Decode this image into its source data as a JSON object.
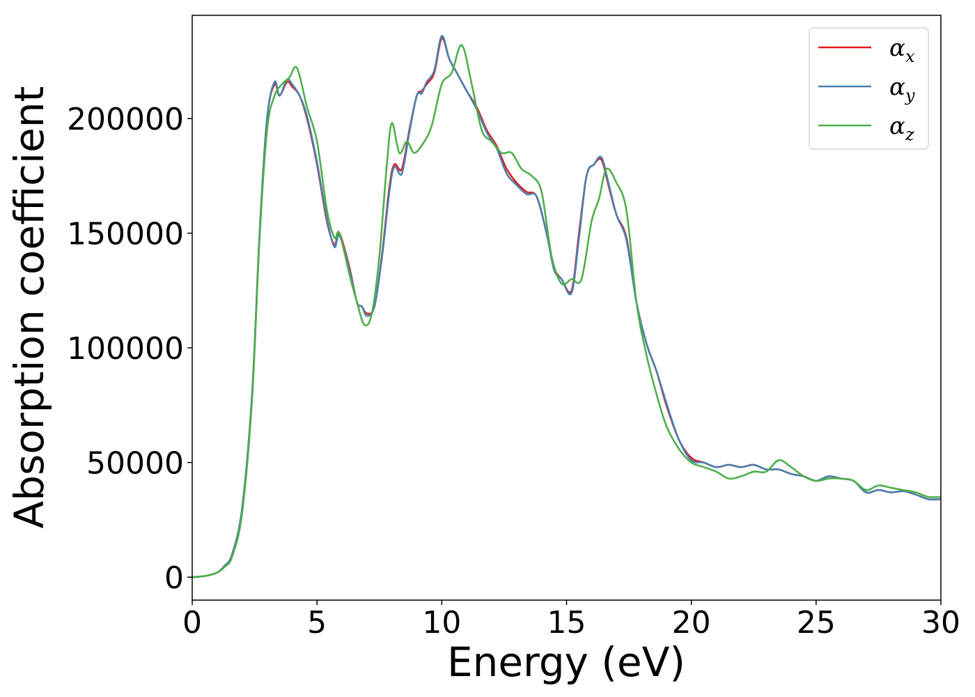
{
  "chart_data": {
    "type": "line",
    "xlabel": "Energy (eV)",
    "ylabel": "Absorption coefficient",
    "xlim": [
      0,
      30
    ],
    "ylim": [
      -10000,
      245000
    ],
    "xticks": [
      0,
      5,
      10,
      15,
      20,
      25,
      30
    ],
    "yticks": [
      0,
      50000,
      100000,
      150000,
      200000
    ],
    "grid": false,
    "legend_position": "top-right",
    "series": [
      {
        "name": "α_x",
        "label_base": "α",
        "label_sub": "x",
        "color": "#e41a1c",
        "x": [
          0,
          0.5,
          1.0,
          1.3,
          1.6,
          2.0,
          2.4,
          2.7,
          3.0,
          3.3,
          3.5,
          3.8,
          4.0,
          4.3,
          4.6,
          5.0,
          5.4,
          5.7,
          5.9,
          6.3,
          6.6,
          6.8,
          7.0,
          7.3,
          7.6,
          7.9,
          8.1,
          8.4,
          8.7,
          9.0,
          9.2,
          9.4,
          9.7,
          10.0,
          10.3,
          10.6,
          11.0,
          11.4,
          11.8,
          12.2,
          12.6,
          13.0,
          13.4,
          13.8,
          14.2,
          14.5,
          14.8,
          15.2,
          15.5,
          15.8,
          16.1,
          16.4,
          16.7,
          17.0,
          17.4,
          17.8,
          18.2,
          18.6,
          19.0,
          19.5,
          20.0,
          20.5,
          21.0,
          21.5,
          22.0,
          22.5,
          23.0,
          23.5,
          24.0,
          24.5,
          25.0,
          25.5,
          26.0,
          26.5,
          27.0,
          27.5,
          28.0,
          28.5,
          29.0,
          29.5,
          30.0
        ],
        "y": [
          0,
          500,
          2000,
          5000,
          10000,
          30000,
          80000,
          150000,
          200000,
          215000,
          210000,
          216000,
          214000,
          210000,
          200000,
          180000,
          155000,
          145000,
          150000,
          135000,
          120000,
          118000,
          115000,
          118000,
          140000,
          170000,
          180000,
          178000,
          195000,
          210000,
          212000,
          215000,
          220000,
          235000,
          226000,
          220000,
          212000,
          205000,
          195000,
          188000,
          178000,
          172000,
          168000,
          166000,
          150000,
          135000,
          130000,
          125000,
          150000,
          175000,
          180000,
          182000,
          170000,
          158000,
          148000,
          120000,
          102000,
          90000,
          75000,
          60000,
          52000,
          50000,
          48000,
          49000,
          48000,
          49000,
          47000,
          47000,
          45000,
          44000,
          42000,
          44000,
          43000,
          42000,
          37000,
          38000,
          37000,
          37500,
          36000,
          34000,
          34000
        ]
      },
      {
        "name": "α_y",
        "label_base": "α",
        "label_sub": "y",
        "color": "#4a7fb0",
        "x": [
          0,
          0.5,
          1.0,
          1.3,
          1.6,
          2.0,
          2.4,
          2.7,
          3.0,
          3.3,
          3.5,
          3.8,
          4.0,
          4.3,
          4.6,
          5.0,
          5.4,
          5.7,
          5.9,
          6.3,
          6.6,
          6.8,
          7.0,
          7.3,
          7.6,
          7.9,
          8.1,
          8.4,
          8.7,
          9.0,
          9.2,
          9.4,
          9.7,
          10.0,
          10.3,
          10.6,
          11.0,
          11.4,
          11.8,
          12.2,
          12.6,
          13.0,
          13.4,
          13.8,
          14.2,
          14.5,
          14.8,
          15.2,
          15.5,
          15.8,
          16.1,
          16.4,
          16.7,
          17.0,
          17.4,
          17.8,
          18.2,
          18.6,
          19.0,
          19.5,
          20.0,
          20.5,
          21.0,
          21.5,
          22.0,
          22.5,
          23.0,
          23.5,
          24.0,
          24.5,
          25.0,
          25.5,
          26.0,
          26.5,
          27.0,
          27.5,
          28.0,
          28.5,
          29.0,
          29.5,
          30.0
        ],
        "y": [
          0,
          500,
          2000,
          5000,
          10000,
          30000,
          80000,
          150000,
          200000,
          216000,
          210000,
          217000,
          215000,
          210000,
          201000,
          181000,
          156000,
          144000,
          149000,
          134000,
          120000,
          118000,
          114000,
          118000,
          139000,
          168000,
          179000,
          176000,
          194000,
          210000,
          211000,
          216000,
          221000,
          236000,
          226000,
          220000,
          212000,
          204000,
          194000,
          187000,
          176000,
          171000,
          167000,
          166000,
          150000,
          134000,
          130000,
          124000,
          148000,
          175000,
          180000,
          183000,
          171000,
          158000,
          147000,
          120000,
          102000,
          90000,
          76000,
          60000,
          51000,
          50000,
          48000,
          49000,
          48000,
          49000,
          47000,
          47000,
          45000,
          44000,
          42000,
          44000,
          43000,
          42000,
          37000,
          38000,
          37000,
          37500,
          36000,
          34000,
          34000
        ]
      },
      {
        "name": "α_z",
        "label_base": "α",
        "label_sub": "z",
        "color": "#4daf4a",
        "x": [
          0,
          0.5,
          1.0,
          1.3,
          1.6,
          2.0,
          2.4,
          2.7,
          3.0,
          3.3,
          3.6,
          3.9,
          4.2,
          4.6,
          5.0,
          5.4,
          5.7,
          5.9,
          6.3,
          6.6,
          6.9,
          7.2,
          7.5,
          7.8,
          8.0,
          8.3,
          8.6,
          8.9,
          9.3,
          9.6,
          10.0,
          10.4,
          10.8,
          11.2,
          11.6,
          12.0,
          12.4,
          12.8,
          13.2,
          13.6,
          14.0,
          14.4,
          14.8,
          15.2,
          15.6,
          16.0,
          16.3,
          16.6,
          17.0,
          17.4,
          17.8,
          18.2,
          18.6,
          19.0,
          19.5,
          20.0,
          20.5,
          21.0,
          21.5,
          22.0,
          22.5,
          23.0,
          23.5,
          24.0,
          24.5,
          25.0,
          25.5,
          26.0,
          26.5,
          27.0,
          27.5,
          28.0,
          28.5,
          29.0,
          29.5,
          30.0
        ],
        "y": [
          0,
          500,
          2000,
          4500,
          9000,
          28000,
          78000,
          148000,
          195000,
          210000,
          215000,
          218000,
          222000,
          205000,
          190000,
          160000,
          148000,
          150000,
          132000,
          120000,
          110000,
          115000,
          140000,
          180000,
          198000,
          185000,
          190000,
          185000,
          190000,
          197000,
          215000,
          220000,
          232000,
          215000,
          195000,
          190000,
          185000,
          185000,
          178000,
          175000,
          168000,
          140000,
          128000,
          130000,
          130000,
          155000,
          165000,
          178000,
          172000,
          160000,
          120000,
          97000,
          80000,
          66000,
          56000,
          50000,
          48000,
          46000,
          43000,
          44000,
          46000,
          46000,
          51000,
          48000,
          44000,
          42000,
          43000,
          43000,
          42000,
          38000,
          40000,
          39000,
          38000,
          37000,
          35000,
          35000
        ]
      }
    ]
  }
}
